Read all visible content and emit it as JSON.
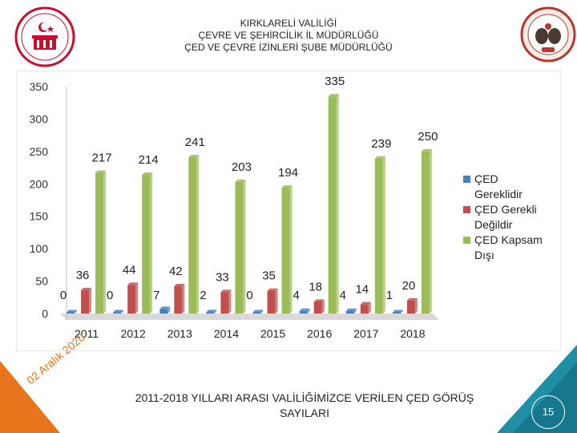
{
  "header": {
    "line1": "KIRKLARELİ VALİLİĞİ",
    "line2": "ÇEVRE VE ŞEHİRCİLİK İL MÜDÜRLÜĞÜ",
    "line3": "ÇED VE ÇEVRE İZİNLERİ ŞUBE MÜDÜRLÜĞÜ"
  },
  "logos": {
    "left": "kirklareli-valiligi-logo",
    "right": "kirklareli-seal-logo"
  },
  "footer": {
    "date_text": "02 Aralık 2020",
    "caption_line1": "2011-2018 YILLARI ARASI VALİLİĞİMİZCE VERİLEN ÇED GÖRÜŞ",
    "caption_line2": "SAYILARI",
    "page_number": "15"
  },
  "colors": {
    "blue": "#4a7ebb",
    "red": "#c0504d",
    "green": "#9bbb59",
    "footer_teal": "#1f8fa6",
    "footer_orange": "#e8741c"
  },
  "chart_data": {
    "type": "bar",
    "title": "",
    "xlabel": "",
    "ylabel": "",
    "ylim": [
      0,
      350
    ],
    "yticks": [
      0,
      50,
      100,
      150,
      200,
      250,
      300,
      350
    ],
    "categories": [
      "2011",
      "2012",
      "2013",
      "2014",
      "2015",
      "2016",
      "2017",
      "2018"
    ],
    "series": [
      {
        "name": "ÇED Gereklidir",
        "legend_lines": [
          "ÇED",
          "Gereklidir"
        ],
        "color": "#4a7ebb",
        "values": [
          0,
          0,
          7,
          2,
          0,
          4,
          4,
          1
        ]
      },
      {
        "name": "ÇED Gerekli Değildir",
        "legend_lines": [
          "ÇED Gerekli",
          "Değildir"
        ],
        "color": "#c0504d",
        "values": [
          36,
          44,
          42,
          33,
          35,
          18,
          14,
          20
        ]
      },
      {
        "name": "ÇED Kapsam Dışı",
        "legend_lines": [
          "ÇED Kapsam",
          "Dışı"
        ],
        "color": "#9bbb59",
        "values": [
          217,
          214,
          241,
          203,
          194,
          335,
          239,
          250
        ]
      }
    ],
    "legend_position": "right",
    "grid": false
  }
}
